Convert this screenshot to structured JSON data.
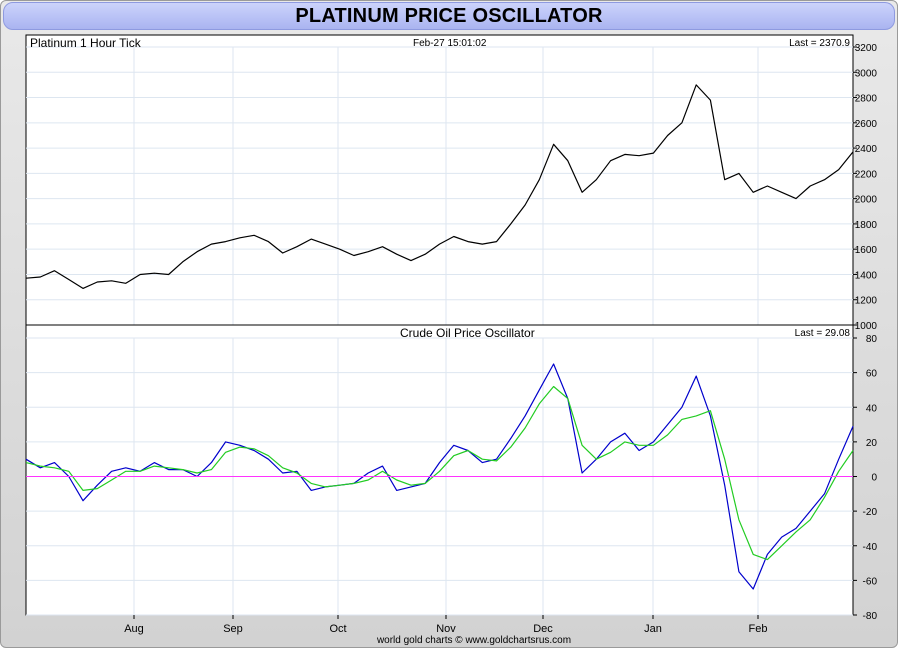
{
  "header": {
    "title": "PLATINUM PRICE OSCILLATOR"
  },
  "footer": {
    "credit": "world gold charts © www.goldchartsrus.com"
  },
  "chart_data": [
    {
      "type": "line",
      "title": "Platinum 1 Hour Tick",
      "timestamp": "Feb-27  15:01:02",
      "last_label": "Last = 2370.9",
      "ylim": [
        1000,
        3200
      ],
      "y_ticks": [
        1000,
        1200,
        1400,
        1600,
        1800,
        2000,
        2200,
        2400,
        2600,
        2800,
        3000,
        3200
      ],
      "x_ticks": [
        "Aug",
        "Sep",
        "Oct",
        "Nov",
        "Dec",
        "Jan",
        "Feb"
      ],
      "series": [
        {
          "color": "#000000",
          "x": [
            0,
            4,
            8,
            12,
            16,
            20,
            24,
            28,
            32,
            36,
            40,
            44,
            48,
            52,
            56,
            60,
            64,
            68,
            72,
            76,
            80,
            84,
            88,
            92,
            96,
            100,
            104,
            108,
            112,
            116,
            120,
            124,
            128,
            132,
            136,
            140,
            144,
            148,
            152,
            156,
            160,
            164,
            168,
            172,
            176,
            180,
            184,
            188,
            192,
            196,
            200,
            204,
            208,
            212,
            216,
            220,
            224,
            228,
            232
          ],
          "y": [
            1370,
            1380,
            1430,
            1360,
            1290,
            1340,
            1350,
            1330,
            1400,
            1410,
            1400,
            1500,
            1580,
            1640,
            1660,
            1690,
            1710,
            1660,
            1570,
            1620,
            1680,
            1640,
            1600,
            1550,
            1580,
            1620,
            1560,
            1510,
            1560,
            1640,
            1700,
            1660,
            1640,
            1660,
            1800,
            1950,
            2150,
            2430,
            2300,
            2050,
            2150,
            2300,
            2350,
            2340,
            2360,
            2500,
            2600,
            2900,
            2780,
            2150,
            2200,
            2050,
            2100,
            2050,
            2000,
            2100,
            2150,
            2230,
            2370
          ]
        }
      ]
    },
    {
      "type": "line",
      "title": "Crude Oil Price Oscillator",
      "last_label": "Last = 29.08",
      "ylim": [
        -80,
        80
      ],
      "y_ticks": [
        -80,
        -60,
        -40,
        -20,
        0,
        20,
        40,
        60,
        80
      ],
      "x_ticks": [
        "Aug",
        "Sep",
        "Oct",
        "Nov",
        "Dec",
        "Jan",
        "Feb"
      ],
      "zero_line": 0,
      "series": [
        {
          "color": "#0000cc",
          "x": [
            0,
            4,
            8,
            12,
            16,
            20,
            24,
            28,
            32,
            36,
            40,
            44,
            48,
            52,
            56,
            60,
            64,
            68,
            72,
            76,
            80,
            84,
            88,
            92,
            96,
            100,
            104,
            108,
            112,
            116,
            120,
            124,
            128,
            132,
            136,
            140,
            144,
            148,
            152,
            156,
            160,
            164,
            168,
            172,
            176,
            180,
            184,
            188,
            192,
            196,
            200,
            204,
            208,
            212,
            216,
            220,
            224,
            228,
            232
          ],
          "y": [
            10,
            5,
            8,
            0,
            -14,
            -5,
            3,
            5,
            3,
            8,
            4,
            4,
            0,
            8,
            20,
            18,
            15,
            10,
            2,
            3,
            -8,
            -6,
            -5,
            -4,
            2,
            6,
            -8,
            -6,
            -4,
            8,
            18,
            15,
            8,
            10,
            22,
            35,
            50,
            65,
            45,
            2,
            10,
            20,
            25,
            15,
            20,
            30,
            40,
            58,
            35,
            -5,
            -55,
            -65,
            -45,
            -35,
            -30,
            -20,
            -10,
            10,
            29
          ]
        },
        {
          "color": "#22cc22",
          "x": [
            0,
            4,
            8,
            12,
            16,
            20,
            24,
            28,
            32,
            36,
            40,
            44,
            48,
            52,
            56,
            60,
            64,
            68,
            72,
            76,
            80,
            84,
            88,
            92,
            96,
            100,
            104,
            108,
            112,
            116,
            120,
            124,
            128,
            132,
            136,
            140,
            144,
            148,
            152,
            156,
            160,
            164,
            168,
            172,
            176,
            180,
            184,
            188,
            192,
            196,
            200,
            204,
            208,
            212,
            216,
            220,
            224,
            228,
            232
          ],
          "y": [
            8,
            6,
            5,
            3,
            -8,
            -7,
            -2,
            3,
            3,
            6,
            5,
            4,
            2,
            4,
            14,
            17,
            16,
            12,
            5,
            2,
            -4,
            -6,
            -5,
            -4,
            -2,
            3,
            -2,
            -5,
            -4,
            3,
            12,
            15,
            10,
            9,
            17,
            28,
            42,
            52,
            45,
            18,
            10,
            14,
            20,
            18,
            18,
            24,
            33,
            35,
            38,
            10,
            -25,
            -45,
            -48,
            -40,
            -32,
            -25,
            -12,
            3,
            15
          ]
        }
      ]
    }
  ]
}
